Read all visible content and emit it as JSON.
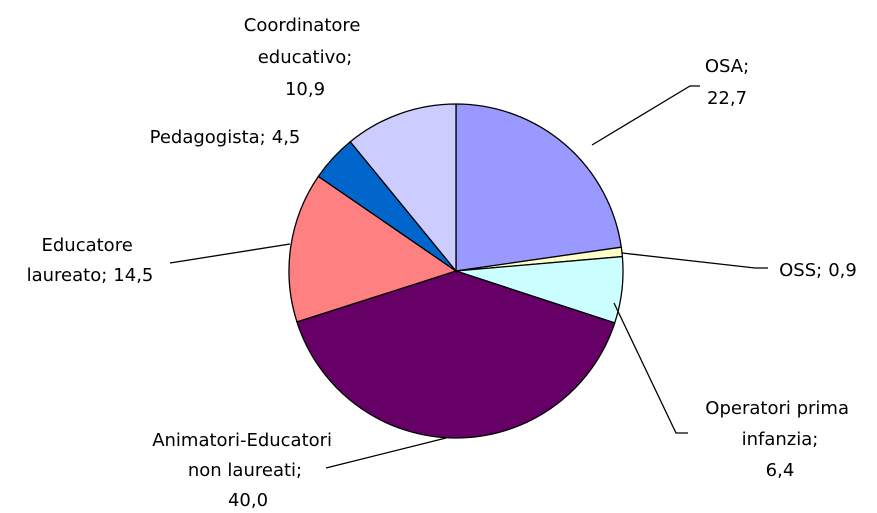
{
  "chart_data": {
    "type": "pie",
    "categories": [
      "OSA;",
      "OSS;",
      "Operatori prima infanzia;",
      "Animatori-Educatori non laureati;",
      "Educatore laureato;",
      "Pedagogista;",
      "Coordinatore educativo;"
    ],
    "values": [
      22.7,
      0.9,
      6.4,
      40.0,
      14.5,
      4.5,
      10.9
    ],
    "value_labels": [
      "22,7",
      "0,9",
      "6,4",
      "40,0",
      "14,5",
      "4,5",
      "10,9"
    ],
    "colors": [
      "#9999ff",
      "#ffffcc",
      "#ccffff",
      "#660066",
      "#ff8080",
      "#0066cc",
      "#ccccff"
    ]
  }
}
